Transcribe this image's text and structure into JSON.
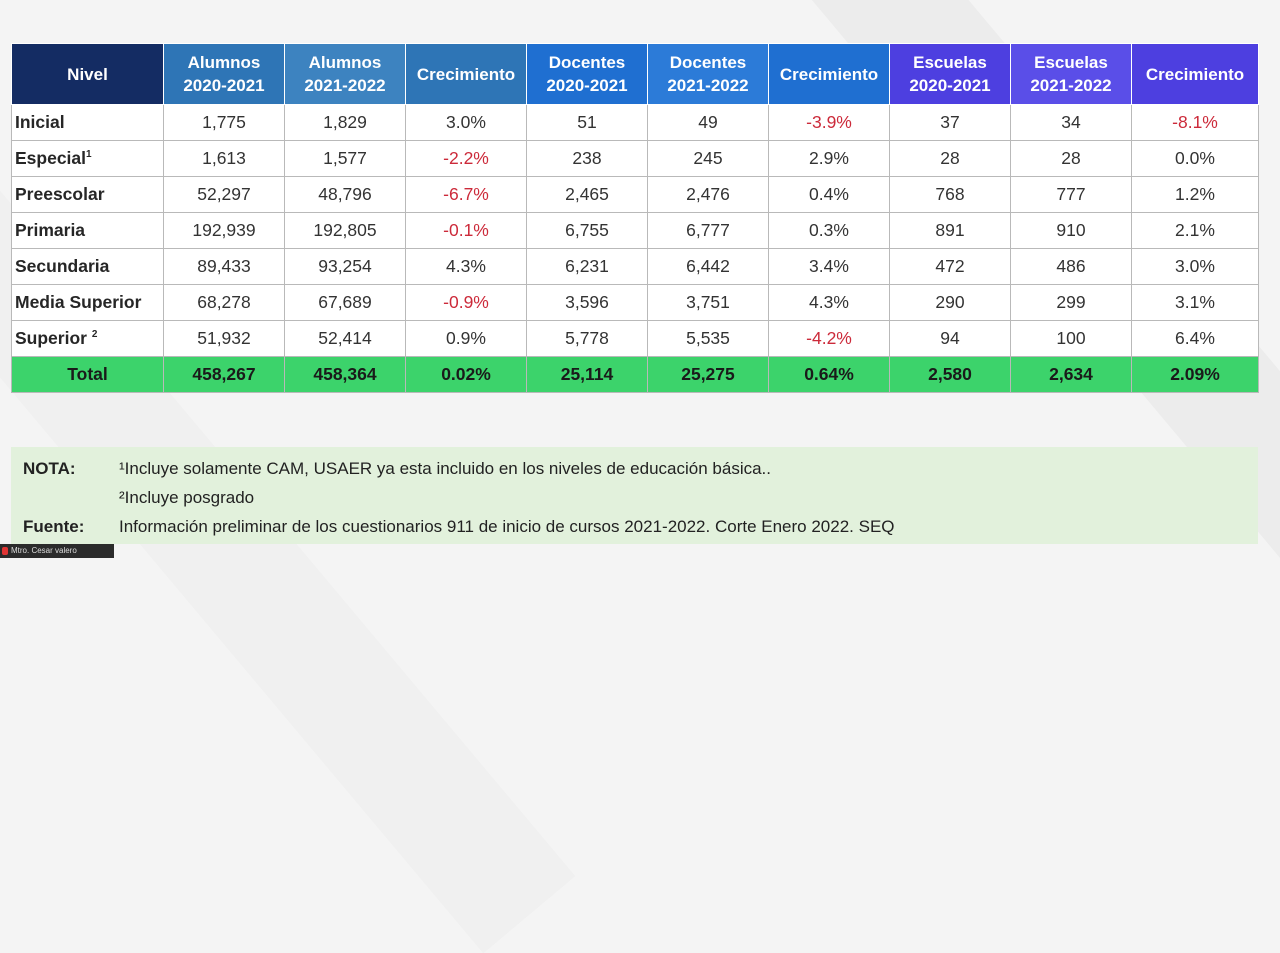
{
  "table": {
    "headers": [
      {
        "line1": "Nivel",
        "line2": ""
      },
      {
        "line1": "Alumnos",
        "line2": "2020-2021"
      },
      {
        "line1": "Alumnos",
        "line2": "2021-2022"
      },
      {
        "line1": "Crecimiento",
        "line2": ""
      },
      {
        "line1": "Docentes",
        "line2": "2020-2021"
      },
      {
        "line1": "Docentes",
        "line2": "2021-2022"
      },
      {
        "line1": "Crecimiento",
        "line2": ""
      },
      {
        "line1": "Escuelas",
        "line2": "2020-2021"
      },
      {
        "line1": "Escuelas",
        "line2": "2021-2022"
      },
      {
        "line1": "Crecimiento",
        "line2": ""
      }
    ],
    "rows": [
      {
        "nivel": "Inicial",
        "sup": "",
        "cells": [
          "1,775",
          "1,829",
          "3.0%",
          "51",
          "49",
          "-3.9%",
          "37",
          "34",
          "-8.1%"
        ]
      },
      {
        "nivel": "Especial",
        "sup": "1",
        "cells": [
          "1,613",
          "1,577",
          "-2.2%",
          "238",
          "245",
          "2.9%",
          "28",
          "28",
          "0.0%"
        ]
      },
      {
        "nivel": "Preescolar",
        "sup": "",
        "cells": [
          "52,297",
          "48,796",
          "-6.7%",
          "2,465",
          "2,476",
          "0.4%",
          "768",
          "777",
          "1.2%"
        ]
      },
      {
        "nivel": "Primaria",
        "sup": "",
        "cells": [
          "192,939",
          "192,805",
          "-0.1%",
          "6,755",
          "6,777",
          "0.3%",
          "891",
          "910",
          "2.1%"
        ]
      },
      {
        "nivel": "Secundaria",
        "sup": "",
        "cells": [
          "89,433",
          "93,254",
          "4.3%",
          "6,231",
          "6,442",
          "3.4%",
          "472",
          "486",
          "3.0%"
        ]
      },
      {
        "nivel": "Media Superior",
        "sup": "",
        "cells": [
          "68,278",
          "67,689",
          "-0.9%",
          "3,596",
          "3,751",
          "4.3%",
          "290",
          "299",
          "3.1%"
        ]
      },
      {
        "nivel": "Superior",
        "sup": "2",
        "cells": [
          "51,932",
          "52,414",
          "0.9%",
          "5,778",
          "5,535",
          "-4.2%",
          "94",
          "100",
          "6.4%"
        ]
      }
    ],
    "total": {
      "nivel": "Total",
      "cells": [
        "458,267",
        "458,364",
        "0.02%",
        "25,114",
        "25,275",
        "0.64%",
        "2,580",
        "2,634",
        "2.09%"
      ]
    }
  },
  "notes": {
    "nota_label": "NOTA:",
    "nota_line1": "¹Incluye solamente CAM, USAER ya esta incluido  en los niveles  de educación básica..",
    "nota_line2": "²Incluye posgrado",
    "fuente_label": "Fuente:",
    "fuente_text": "Información preliminar de los cuestionarios 911 de inicio de cursos 2021-2022. Corte Enero 2022. SEQ"
  },
  "presenter": {
    "name": "Mtro. Cesar valero"
  },
  "colors": {
    "negative": "#cc2a3a",
    "total_row": "#3cd36b",
    "notes_bg": "#e2f1dc"
  }
}
